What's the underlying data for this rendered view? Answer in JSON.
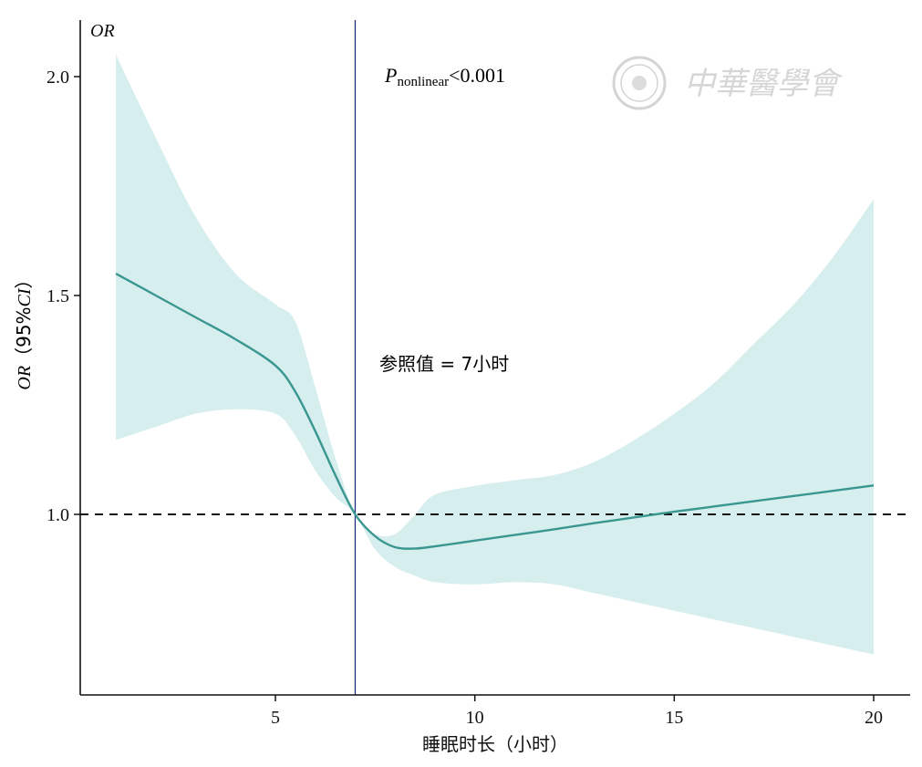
{
  "chart_data": {
    "type": "line",
    "x_label": "睡眠时长（小时）",
    "y_label_italic": "OR",
    "y_label_rest": "（95%",
    "y_label_ci": "CI",
    "y_label_close": "）",
    "y_axis_top_label": "OR",
    "xlim": [
      0,
      21
    ],
    "ylim": [
      0.59,
      2.13
    ],
    "x_ticks": [
      5,
      10,
      15,
      20
    ],
    "x_tick_labels": [
      "5",
      "10",
      "15",
      "20"
    ],
    "y_ticks": [
      1.0,
      1.5,
      2.0
    ],
    "y_tick_labels": [
      "1.0",
      "1.5",
      "2.0"
    ],
    "reference_x": 7,
    "reference_y": 1.0,
    "reference_line_color": "#1f2e7a",
    "curve_color": "#3a9690",
    "band_color": "#d6eeed",
    "x": [
      1,
      2,
      3,
      4,
      5,
      5.5,
      6,
      6.5,
      7,
      7.5,
      8,
      8.5,
      9,
      10,
      11,
      12,
      13,
      14,
      15,
      16,
      17,
      18,
      19,
      20
    ],
    "or": [
      1.55,
      1.5,
      1.45,
      1.4,
      1.34,
      1.28,
      1.19,
      1.09,
      1.0,
      0.95,
      0.925,
      0.922,
      0.927,
      0.94,
      0.953,
      0.966,
      0.98,
      0.993,
      1.006,
      1.018,
      1.03,
      1.042,
      1.054,
      1.066
    ],
    "ci_upper": [
      2.05,
      1.86,
      1.68,
      1.55,
      1.48,
      1.44,
      1.29,
      1.13,
      1.0,
      0.955,
      0.955,
      1.0,
      1.045,
      1.065,
      1.078,
      1.09,
      1.12,
      1.17,
      1.23,
      1.3,
      1.39,
      1.48,
      1.59,
      1.72
    ],
    "ci_lower": [
      1.17,
      1.2,
      1.23,
      1.24,
      1.23,
      1.18,
      1.1,
      1.04,
      1.0,
      0.92,
      0.88,
      0.86,
      0.845,
      0.84,
      0.845,
      0.84,
      0.82,
      0.8,
      0.78,
      0.76,
      0.74,
      0.72,
      0.7,
      0.68
    ],
    "annotations": {
      "p_label": "P",
      "p_subscript": "nonlinear",
      "p_value": "<0.001",
      "reference_text": "参照值 = 7小时"
    }
  },
  "watermark": {
    "text": "中華醫學會",
    "icon": "seal-icon",
    "color": "#d0d0d0"
  }
}
